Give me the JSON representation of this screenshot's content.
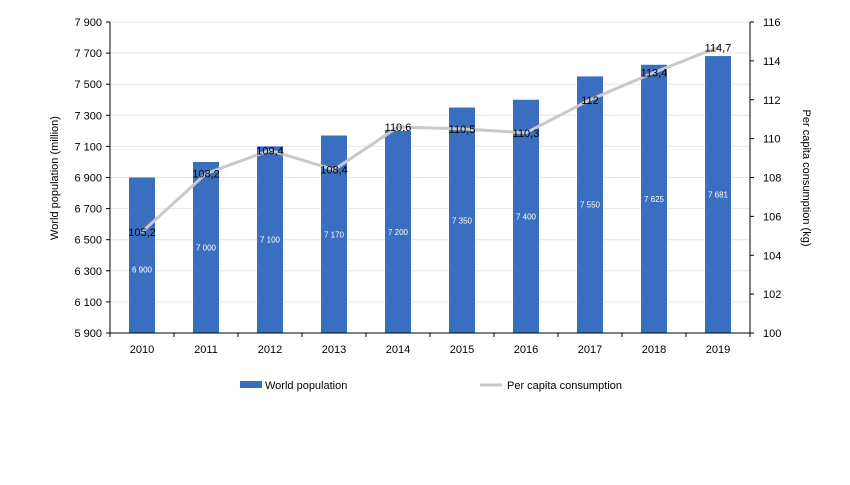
{
  "chart_data": {
    "type": "bar",
    "categories": [
      "2010",
      "2011",
      "2012",
      "2013",
      "2014",
      "2015",
      "2016",
      "2017",
      "2018",
      "2019"
    ],
    "series": [
      {
        "name": "World population",
        "kind": "bar",
        "axis": "left",
        "color": "#3a6fc0",
        "values": [
          6900,
          7000,
          7100,
          7170,
          7200,
          7350,
          7400,
          7550,
          7625,
          7681
        ],
        "value_labels": [
          "6 900",
          "7 000",
          "7 100",
          "7 170",
          "7 200",
          "7 350",
          "7 400",
          "7 550",
          "7 625",
          "7 681"
        ]
      },
      {
        "name": "Per capita consumption",
        "kind": "line",
        "axis": "right",
        "color": "#c9c9c9",
        "values": [
          105.2,
          108.2,
          109.4,
          108.4,
          110.6,
          110.5,
          110.3,
          112,
          113.4,
          114.7
        ],
        "value_labels": [
          "105,2",
          "108,2",
          "109,4",
          "108,4",
          "110.6",
          "110,5",
          "110,3",
          "112",
          "113,4",
          "114,7"
        ]
      }
    ],
    "ylabel": "World population (million)",
    "y2label": "Per capita consumption (kg)",
    "ylim": [
      5900,
      7900
    ],
    "y2lim": [
      100,
      116
    ],
    "yticks": [
      "5 900",
      "6 100",
      "6 300",
      "6 500",
      "6 700",
      "6 900",
      "7 100",
      "7 300",
      "7 500",
      "7 700",
      "7 900"
    ],
    "y2ticks": [
      "100",
      "102",
      "104",
      "106",
      "108",
      "110",
      "112",
      "114",
      "116"
    ],
    "legend": [
      "World population",
      "Per capita consumption"
    ],
    "legend_position": "bottom"
  }
}
